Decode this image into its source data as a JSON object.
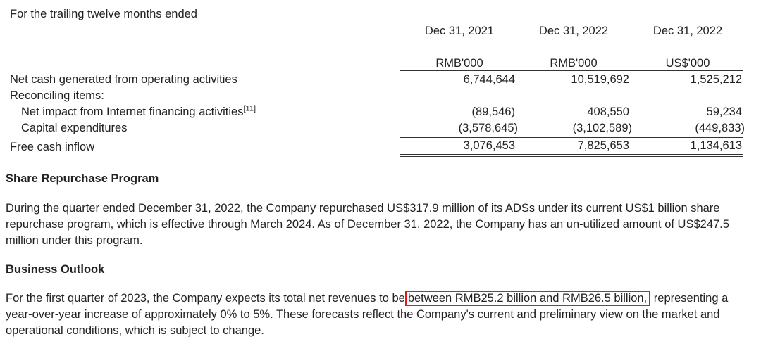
{
  "table": {
    "period_caption": "For the trailing twelve months ended",
    "columns": [
      {
        "date": "Dec 31, 2021",
        "unit": "RMB'000"
      },
      {
        "date": "Dec 31, 2022",
        "unit": "RMB'000"
      },
      {
        "date": "Dec 31, 2022",
        "unit": "US$'000"
      }
    ],
    "rows": [
      {
        "label": "Net cash generated from operating activities",
        "values": [
          "6,744,644",
          "10,519,692",
          "1,525,212"
        ]
      },
      {
        "label": "Reconciling items:",
        "values": []
      },
      {
        "label": "Net impact from Internet financing activities",
        "footnote": "[11]",
        "values": [
          "(89,546)",
          "408,550",
          "59,234"
        ]
      },
      {
        "label": "Capital expenditures",
        "values": [
          "(3,578,645)",
          "(3,102,589)",
          "(449,833)"
        ]
      },
      {
        "label": "Free cash inflow",
        "values": [
          "3,076,453",
          "7,825,653",
          "1,134,613"
        ]
      }
    ]
  },
  "share_repurchase": {
    "heading": "Share Repurchase Program",
    "body": "During the quarter ended December 31, 2022, the Company repurchased US$317.9 million of its ADSs under its current US$1 billion share repurchase program, which is effective through March 2024. As of December 31, 2022, the Company has an un-utilized amount of US$247.5 million under this program."
  },
  "business_outlook": {
    "heading": "Business Outlook",
    "body_before": "For the first quarter of 2023, the Company expects its total net revenues to be",
    "body_highlight": "between RMB25.2 billion and RMB26.5 billion,",
    "body_after": "representing a year-over-year increase of approximately 0% to 5%. These forecasts reflect the Company's current and preliminary view on the market and operational conditions, which is subject to change.",
    "highlight_color": "#e0191f"
  }
}
